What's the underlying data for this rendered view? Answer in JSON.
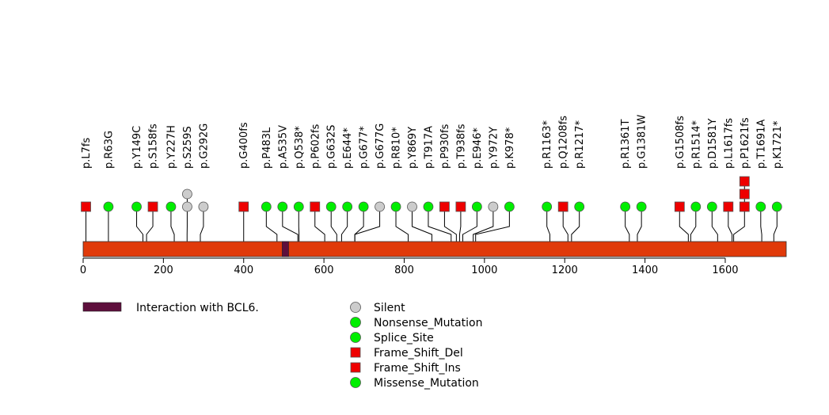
{
  "chart_data": {
    "type": "lollipop",
    "protein_length": 1752,
    "x_range": [
      0,
      1752
    ],
    "x_ticks": [
      0,
      200,
      400,
      600,
      800,
      1000,
      1200,
      1400,
      1600
    ],
    "protein_color": "#e03a0a",
    "domains": [
      {
        "name": "Interaction with BCL6.",
        "start": 496,
        "end": 512,
        "color": "#5e0f3c"
      }
    ],
    "mutation_categories": {
      "Silent": {
        "color": "#cccccc",
        "shape": "circle"
      },
      "Nonsense_Mutation": {
        "color": "#00ee00",
        "shape": "circle"
      },
      "Splice_Site": {
        "color": "#00ee00",
        "shape": "circle"
      },
      "Frame_Shift_Del": {
        "color": "#ee0000",
        "shape": "square"
      },
      "Frame_Shift_Ins": {
        "color": "#ee0000",
        "shape": "square"
      },
      "Missense_Mutation": {
        "color": "#00ee00",
        "shape": "circle"
      }
    },
    "mutations": [
      {
        "label": "p.L7fs",
        "position": 7,
        "count": 1,
        "type": "Frame_Shift_Del"
      },
      {
        "label": "p.R63G",
        "position": 63,
        "count": 1,
        "type": "Missense_Mutation"
      },
      {
        "label": "p.Y149C",
        "position": 149,
        "count": 1,
        "type": "Missense_Mutation"
      },
      {
        "label": "p.S158fs",
        "position": 158,
        "count": 1,
        "type": "Frame_Shift_Del"
      },
      {
        "label": "p.Y227H",
        "position": 227,
        "count": 1,
        "type": "Missense_Mutation"
      },
      {
        "label": "p.S259S",
        "position": 259,
        "count": 2,
        "type": "Silent"
      },
      {
        "label": "p.G292G",
        "position": 292,
        "count": 1,
        "type": "Silent"
      },
      {
        "label": "p.G400fs",
        "position": 400,
        "count": 1,
        "type": "Frame_Shift_Del"
      },
      {
        "label": "p.P483L",
        "position": 483,
        "count": 1,
        "type": "Missense_Mutation"
      },
      {
        "label": "p.A535V",
        "position": 535,
        "count": 1,
        "type": "Missense_Mutation"
      },
      {
        "label": "p.Q538*",
        "position": 538,
        "count": 1,
        "type": "Nonsense_Mutation"
      },
      {
        "label": "p.P602fs",
        "position": 602,
        "count": 1,
        "type": "Frame_Shift_Del"
      },
      {
        "label": "p.G632S",
        "position": 632,
        "count": 1,
        "type": "Missense_Mutation"
      },
      {
        "label": "p.E644*",
        "position": 644,
        "count": 1,
        "type": "Nonsense_Mutation"
      },
      {
        "label": "p.G677*",
        "position": 677,
        "count": 1,
        "type": "Nonsense_Mutation"
      },
      {
        "label": "p.G677G",
        "position": 677,
        "count": 1,
        "type": "Silent"
      },
      {
        "label": "p.R810*",
        "position": 810,
        "count": 1,
        "type": "Nonsense_Mutation"
      },
      {
        "label": "p.Y869Y",
        "position": 869,
        "count": 1,
        "type": "Silent"
      },
      {
        "label": "p.T917A",
        "position": 917,
        "count": 1,
        "type": "Missense_Mutation"
      },
      {
        "label": "p.P930fs",
        "position": 930,
        "count": 1,
        "type": "Frame_Shift_Del"
      },
      {
        "label": "p.T938fs",
        "position": 938,
        "count": 1,
        "type": "Frame_Shift_Del"
      },
      {
        "label": "p.E946*",
        "position": 946,
        "count": 1,
        "type": "Nonsense_Mutation"
      },
      {
        "label": "p.Y972Y",
        "position": 972,
        "count": 1,
        "type": "Silent"
      },
      {
        "label": "p.K978*",
        "position": 978,
        "count": 1,
        "type": "Nonsense_Mutation"
      },
      {
        "label": "p.R1163*",
        "position": 1163,
        "count": 1,
        "type": "Nonsense_Mutation"
      },
      {
        "label": "p.Q1208fs",
        "position": 1208,
        "count": 1,
        "type": "Frame_Shift_Del"
      },
      {
        "label": "p.R1217*",
        "position": 1217,
        "count": 1,
        "type": "Nonsense_Mutation"
      },
      {
        "label": "p.R1361T",
        "position": 1361,
        "count": 1,
        "type": "Missense_Mutation"
      },
      {
        "label": "p.G1381W",
        "position": 1381,
        "count": 1,
        "type": "Missense_Mutation"
      },
      {
        "label": "p.G1508fs",
        "position": 1508,
        "count": 1,
        "type": "Frame_Shift_Del"
      },
      {
        "label": "p.R1514*",
        "position": 1514,
        "count": 1,
        "type": "Nonsense_Mutation"
      },
      {
        "label": "p.D1581Y",
        "position": 1581,
        "count": 1,
        "type": "Missense_Mutation"
      },
      {
        "label": "p.L1617fs",
        "position": 1617,
        "count": 1,
        "type": "Frame_Shift_Del"
      },
      {
        "label": "p.P1621fs",
        "position": 1621,
        "count": 3,
        "type": "Frame_Shift_Del"
      },
      {
        "label": "p.T1691A",
        "position": 1691,
        "count": 1,
        "type": "Missense_Mutation"
      },
      {
        "label": "p.K1721*",
        "position": 1721,
        "count": 1,
        "type": "Nonsense_Mutation"
      }
    ],
    "legend": {
      "domains": [
        "Interaction with BCL6."
      ],
      "mutation_types": [
        "Silent",
        "Nonsense_Mutation",
        "Splice_Site",
        "Frame_Shift_Del",
        "Frame_Shift_Ins",
        "Missense_Mutation"
      ]
    }
  }
}
